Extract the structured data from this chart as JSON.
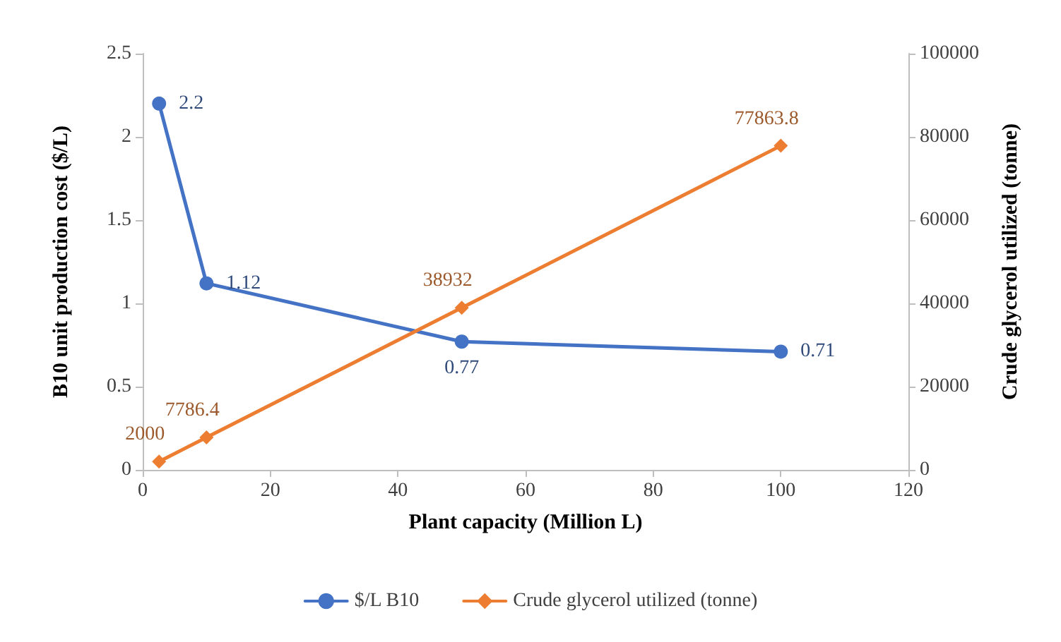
{
  "chart_data": {
    "type": "line",
    "xlabel": "Plant capacity (Million L)",
    "ylabel": "B10 unit production cost ($/L)",
    "y2label": "Crude glycerol utilized (tonne)",
    "x": [
      2.57,
      10,
      50,
      100
    ],
    "series": [
      {
        "name": "$/L B10",
        "color": "#4472c4",
        "marker": "circle",
        "values": [
          2.2,
          1.12,
          0.77,
          0.71
        ]
      },
      {
        "name": "Crude glycerol utilized (tonne)",
        "color": "#ed7d31",
        "marker": "diamond",
        "axis": "y2",
        "values": [
          2000,
          7786.4,
          38932,
          77863.8
        ]
      }
    ],
    "xlim": [
      0,
      120
    ],
    "xticks": [
      0,
      20,
      40,
      60,
      80,
      100,
      120
    ],
    "ylim": [
      0,
      2.5
    ],
    "yticks": [
      0,
      0.5,
      1,
      1.5,
      2,
      2.5
    ],
    "y2lim": [
      0,
      100000
    ],
    "y2ticks": [
      0,
      20000,
      40000,
      60000,
      80000,
      100000
    ],
    "data_labels": true,
    "legend": "bottom",
    "grid": false,
    "line_style": "solid"
  }
}
